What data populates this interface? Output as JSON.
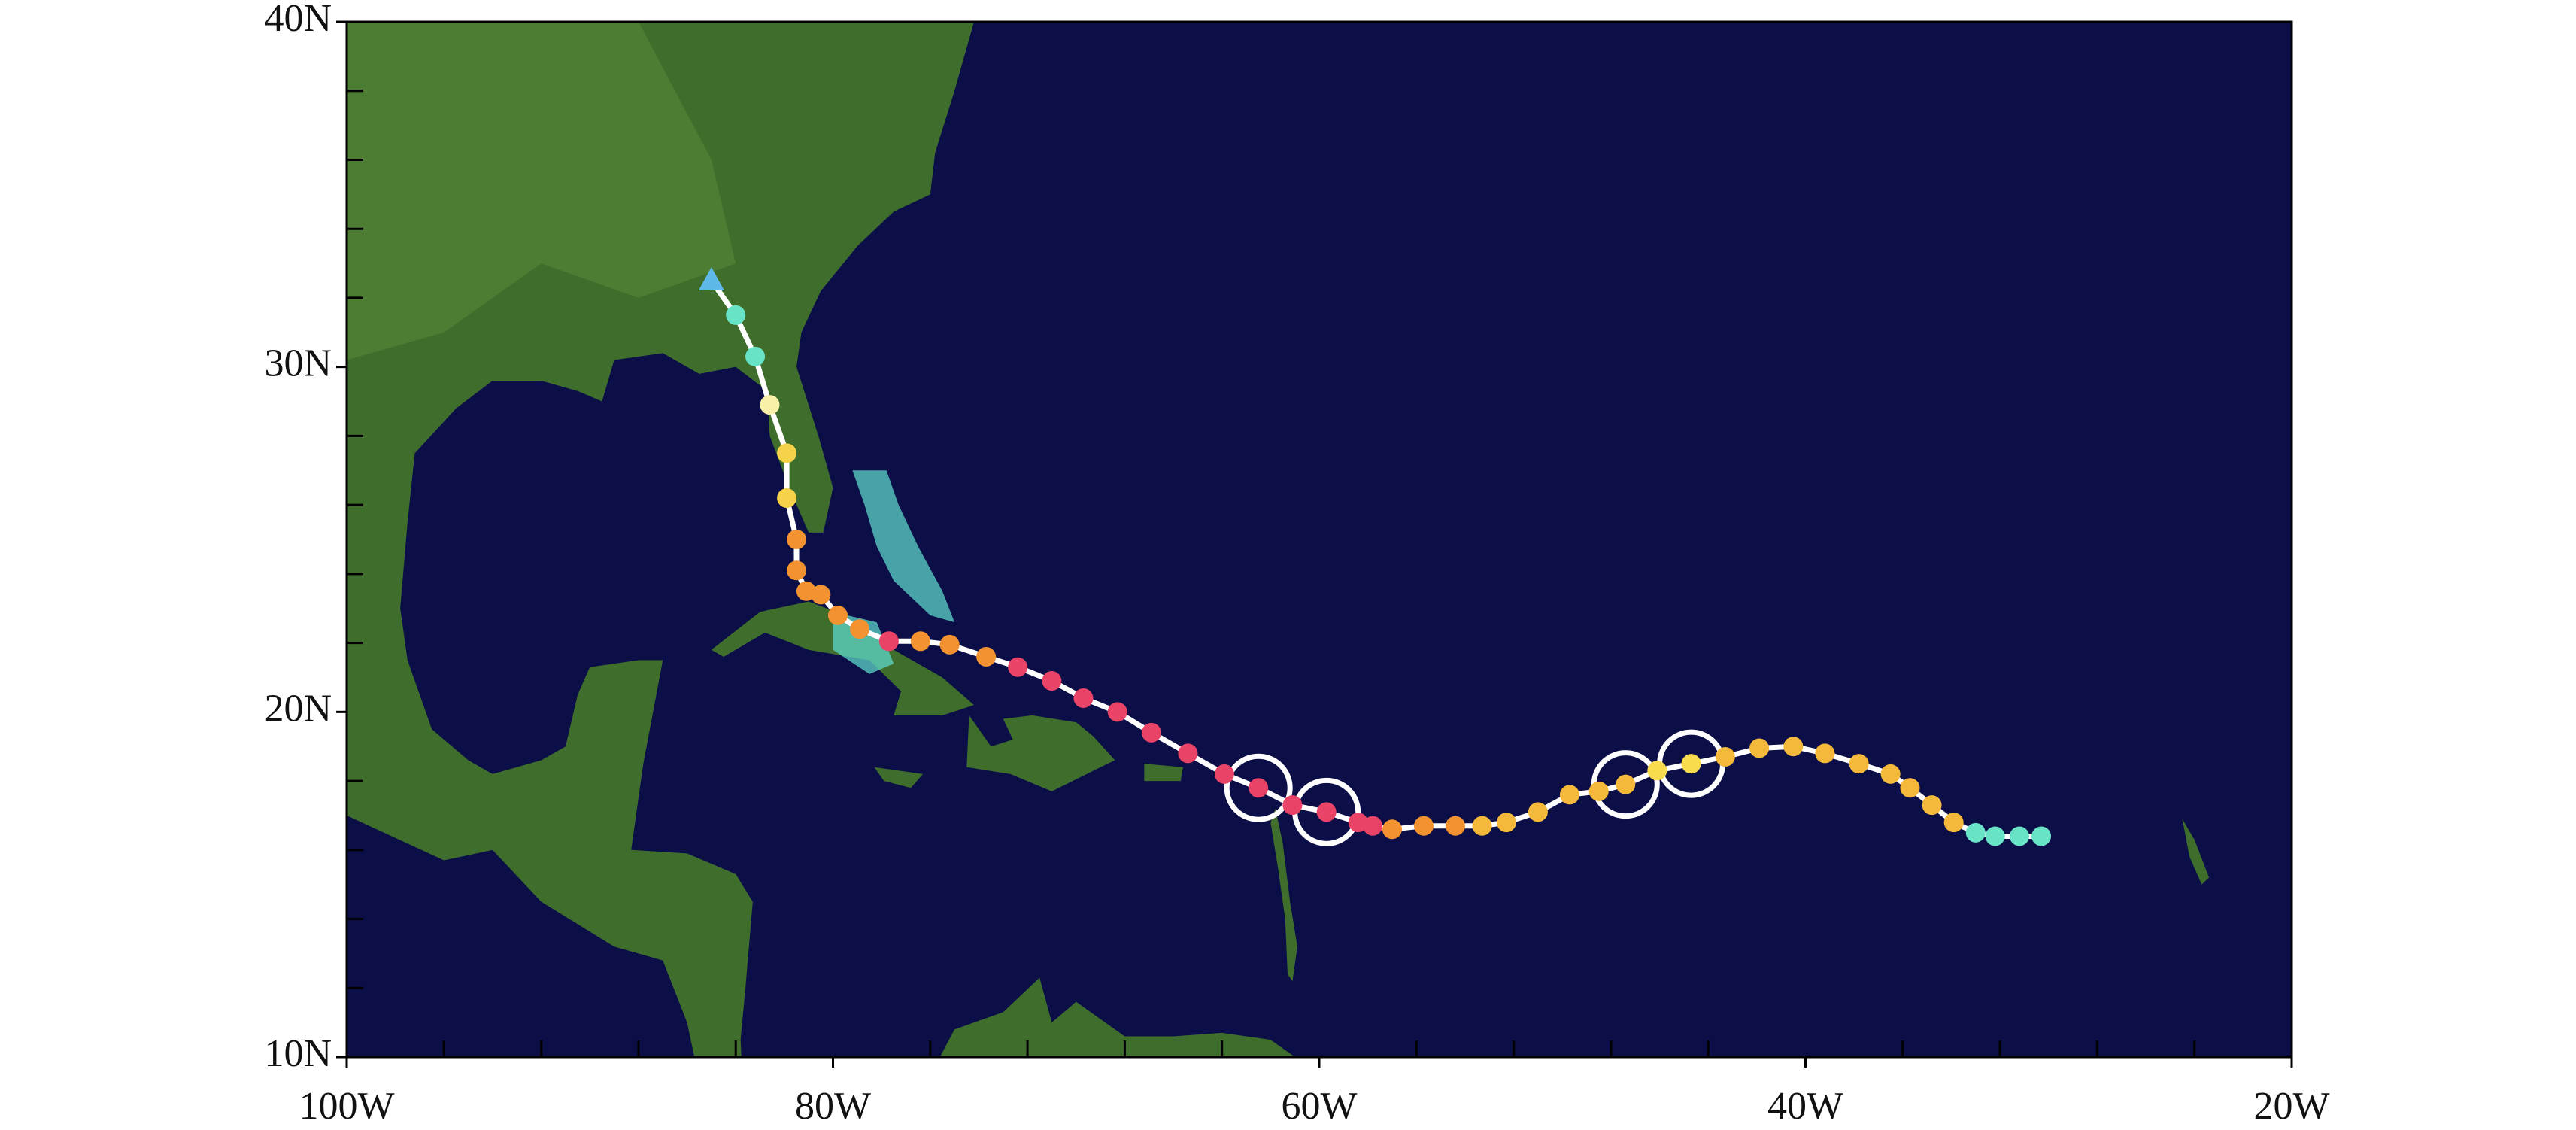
{
  "map": {
    "xlim": [
      -100,
      -20
    ],
    "ylim": [
      10,
      40
    ],
    "xticks": [
      {
        "value": -100,
        "label": "100W"
      },
      {
        "value": -80,
        "label": "80W"
      },
      {
        "value": -60,
        "label": "60W"
      },
      {
        "value": -40,
        "label": "40W"
      },
      {
        "value": -20,
        "label": "20W"
      }
    ],
    "yticks": [
      {
        "value": 10,
        "label": "10N"
      },
      {
        "value": 20,
        "label": "20N"
      },
      {
        "value": 30,
        "label": "30N"
      },
      {
        "value": 40,
        "label": "40N"
      }
    ],
    "x_minor_ticks": [
      -96,
      -92,
      -88,
      -84,
      -76,
      -72,
      -68,
      -64,
      -56,
      -52,
      -48,
      -44,
      -36,
      -32,
      -28,
      -24
    ],
    "y_minor_ticks": [
      12,
      14,
      16,
      18,
      22,
      24,
      26,
      28,
      32,
      34,
      36,
      38
    ],
    "track": {
      "lon": [
        -30.3,
        -31.2,
        -32.2,
        -33.0,
        -33.9,
        -34.8,
        -35.7,
        -36.5,
        -37.8,
        -39.2,
        -40.5,
        -41.9,
        -43.3,
        -44.7,
        -46.1,
        -47.4,
        -48.5,
        -49.7,
        -51.0,
        -52.3,
        -53.3,
        -54.4,
        -55.7,
        -57.0,
        -57.8,
        -58.4,
        -59.7,
        -61.1,
        -62.5,
        -63.9,
        -65.4,
        -66.9,
        -68.3,
        -69.7,
        -71.0,
        -72.4,
        -73.7,
        -75.2,
        -76.4,
        -77.7,
        -78.9,
        -79.8,
        -80.5,
        -81.1,
        -81.5,
        -81.5,
        -81.9,
        -81.9,
        -82.6,
        -83.2,
        -84.0,
        -85.0
      ],
      "lat": [
        16.4,
        16.4,
        16.4,
        16.5,
        16.8,
        17.3,
        17.8,
        18.2,
        18.5,
        18.8,
        19.0,
        18.95,
        18.7,
        18.5,
        18.3,
        17.9,
        17.7,
        17.6,
        17.1,
        16.8,
        16.7,
        16.7,
        16.7,
        16.6,
        16.7,
        16.8,
        17.1,
        17.3,
        17.8,
        18.2,
        18.8,
        19.4,
        20.0,
        20.4,
        20.9,
        21.3,
        21.6,
        21.95,
        22.05,
        22.05,
        22.4,
        22.8,
        23.4,
        23.5,
        24.1,
        25.0,
        26.2,
        27.5,
        28.9,
        30.3,
        31.5,
        32.5
      ],
      "colors": [
        "#69e3c6",
        "#69e3c6",
        "#69e3c6",
        "#69e3c6",
        "#f4b93a",
        "#f4b93a",
        "#f4b93a",
        "#f4b93a",
        "#f4b93a",
        "#f4b93a",
        "#f4b93a",
        "#f4b93a",
        "#f4b93a",
        "#f8dc4e",
        "#f8dc4e",
        "#f4b93a",
        "#f4b93a",
        "#f4b93a",
        "#f4b93a",
        "#f4b93a",
        "#f4b93a",
        "#f39230",
        "#f39230",
        "#f39230",
        "#e94368",
        "#e94368",
        "#e94368",
        "#e94368",
        "#e94368",
        "#e94368",
        "#e94368",
        "#e94368",
        "#e94368",
        "#e94368",
        "#e94368",
        "#e94368",
        "#f39230",
        "#f39230",
        "#f39230",
        "#e94368",
        "#f39230",
        "#f39230",
        "#f39230",
        "#f39230",
        "#f39230",
        "#f39230",
        "#f6d24a",
        "#f6d24a",
        "#f8f0a8",
        "#69e3c6",
        "#69e3c6",
        "#5fb9e8"
      ],
      "ringed": [
        13,
        15,
        26,
        28
      ],
      "end_marker": "triangle",
      "line_color": "#ffffff"
    }
  }
}
